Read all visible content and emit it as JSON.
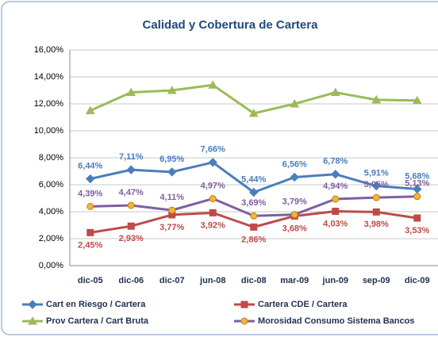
{
  "chart_data": {
    "type": "line",
    "title": "Calidad y Cobertura de Cartera",
    "categories": [
      "dic-05",
      "dic-06",
      "dic-07",
      "jun-08",
      "dic-08",
      "mar-09",
      "jun-09",
      "sep-09",
      "dic-09"
    ],
    "ylim": [
      0,
      16
    ],
    "yticks": [
      {
        "value": 0,
        "label": "0,00%"
      },
      {
        "value": 2,
        "label": "2,00%"
      },
      {
        "value": 4,
        "label": "4,00%"
      },
      {
        "value": 6,
        "label": "6,00%"
      },
      {
        "value": 8,
        "label": "8,00%"
      },
      {
        "value": 10,
        "label": "10,00%"
      },
      {
        "value": 12,
        "label": "12,00%"
      },
      {
        "value": 14,
        "label": "14,00%"
      },
      {
        "value": 16,
        "label": "16,00%"
      }
    ],
    "grid": true,
    "series": [
      {
        "name": "Cart en Riesgo / Cartera",
        "color": "#4a7ebb",
        "marker": "diamond",
        "marker_color": "#4a7ebb",
        "label_position": "above",
        "values": [
          6.44,
          7.11,
          6.95,
          7.66,
          5.44,
          6.56,
          6.78,
          5.91,
          5.68
        ],
        "value_labels": [
          "6,44%",
          "7,11%",
          "6,95%",
          "7,66%",
          "5,44%",
          "6,56%",
          "6,78%",
          "5,91%",
          "5,68%"
        ]
      },
      {
        "name": "Cartera CDE / Cartera",
        "color": "#be4b48",
        "marker": "square",
        "marker_color": "#be4b48",
        "label_position": "below",
        "values": [
          2.45,
          2.93,
          3.77,
          3.92,
          2.86,
          3.68,
          4.03,
          3.98,
          3.53
        ],
        "value_labels": [
          "2,45%",
          "2,93%",
          "3,77%",
          "3,92%",
          "2,86%",
          "3,68%",
          "4,03%",
          "3,98%",
          "3,53%"
        ]
      },
      {
        "name": "Prov Cartera / Cart Bruta",
        "color": "#9bbb59",
        "marker": "triangle",
        "marker_color": "#9bbb59",
        "values": [
          11.5,
          12.85,
          13.0,
          13.4,
          11.3,
          12.0,
          12.85,
          12.3,
          12.25
        ]
      },
      {
        "name": "Morosidad Consumo Sistema Bancos",
        "color": "#7e5fa0",
        "marker": "circle",
        "marker_color": "#f2b632",
        "label_position": "above",
        "values": [
          4.39,
          4.47,
          4.11,
          4.97,
          3.69,
          3.79,
          4.94,
          5.05,
          5.13
        ],
        "value_labels": [
          "4,39%",
          "4,47%",
          "4,11%",
          "4,97%",
          "3,69%",
          "3,79%",
          "4,94%",
          "5,05%",
          "5,13%"
        ]
      }
    ]
  }
}
